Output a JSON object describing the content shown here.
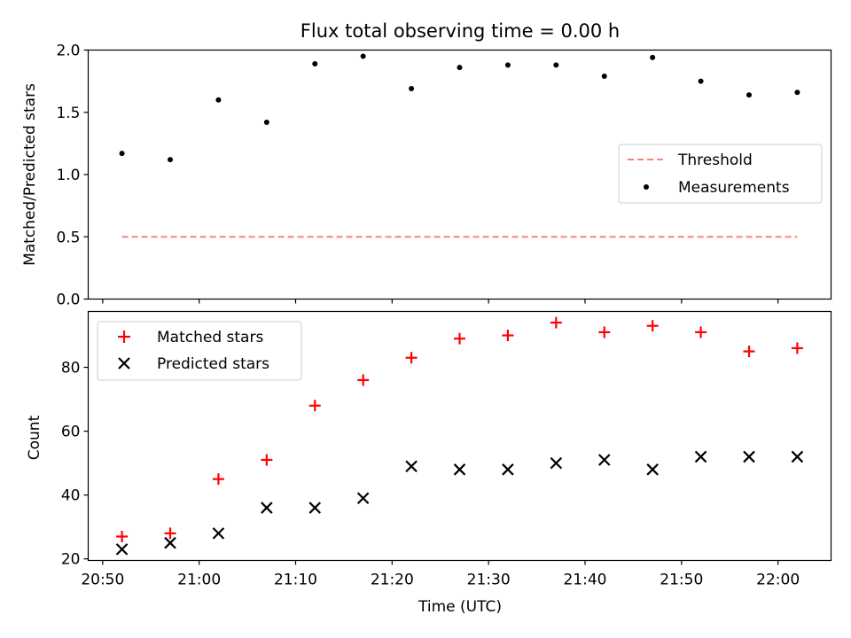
{
  "title": "Flux total observing time = 0.00 h",
  "xlabel": "Time (UTC)",
  "chart_data": [
    {
      "type": "scatter",
      "ylabel": "Matched/Predicted stars",
      "ylim": [
        0,
        2.0
      ],
      "yticks": [
        "0.0",
        "0.5",
        "1.0",
        "1.5",
        "2.0"
      ],
      "x": [
        "20:52",
        "20:57",
        "21:02",
        "21:07",
        "21:12",
        "21:17",
        "21:22",
        "21:27",
        "21:32",
        "21:37",
        "21:42",
        "21:47",
        "21:52",
        "21:57",
        "22:02"
      ],
      "series": [
        {
          "name": "Threshold",
          "style": "dashed-line",
          "color": "#ff7f7f",
          "x_range": [
            "20:52",
            "22:02"
          ],
          "value": 0.5
        },
        {
          "name": "Measurements",
          "style": "dot",
          "color": "#000000",
          "values": [
            1.17,
            1.12,
            1.6,
            1.42,
            1.89,
            1.95,
            1.69,
            1.86,
            1.88,
            1.88,
            1.79,
            1.94,
            1.75,
            1.64,
            1.66
          ]
        }
      ],
      "legend": "center-right"
    },
    {
      "type": "scatter",
      "ylabel": "Count",
      "ylim": [
        19.5,
        97.5
      ],
      "yticks": [
        "20",
        "40",
        "60",
        "80"
      ],
      "x": [
        "20:52",
        "20:57",
        "21:02",
        "21:07",
        "21:12",
        "21:17",
        "21:22",
        "21:27",
        "21:32",
        "21:37",
        "21:42",
        "21:47",
        "21:52",
        "21:57",
        "22:02"
      ],
      "series": [
        {
          "name": "Matched stars",
          "style": "plus",
          "color": "#ff0000",
          "values": [
            27,
            28,
            45,
            51,
            68,
            76,
            83,
            89,
            90,
            94,
            91,
            93,
            91,
            85,
            86
          ]
        },
        {
          "name": "Predicted stars",
          "style": "x",
          "color": "#000000",
          "values": [
            23,
            25,
            28,
            36,
            36,
            39,
            49,
            48,
            48,
            50,
            51,
            48,
            52,
            52,
            52
          ]
        }
      ],
      "legend": "upper-left"
    }
  ],
  "xticks": [
    "20:50",
    "21:00",
    "21:10",
    "21:20",
    "21:30",
    "21:40",
    "21:50",
    "22:00"
  ]
}
